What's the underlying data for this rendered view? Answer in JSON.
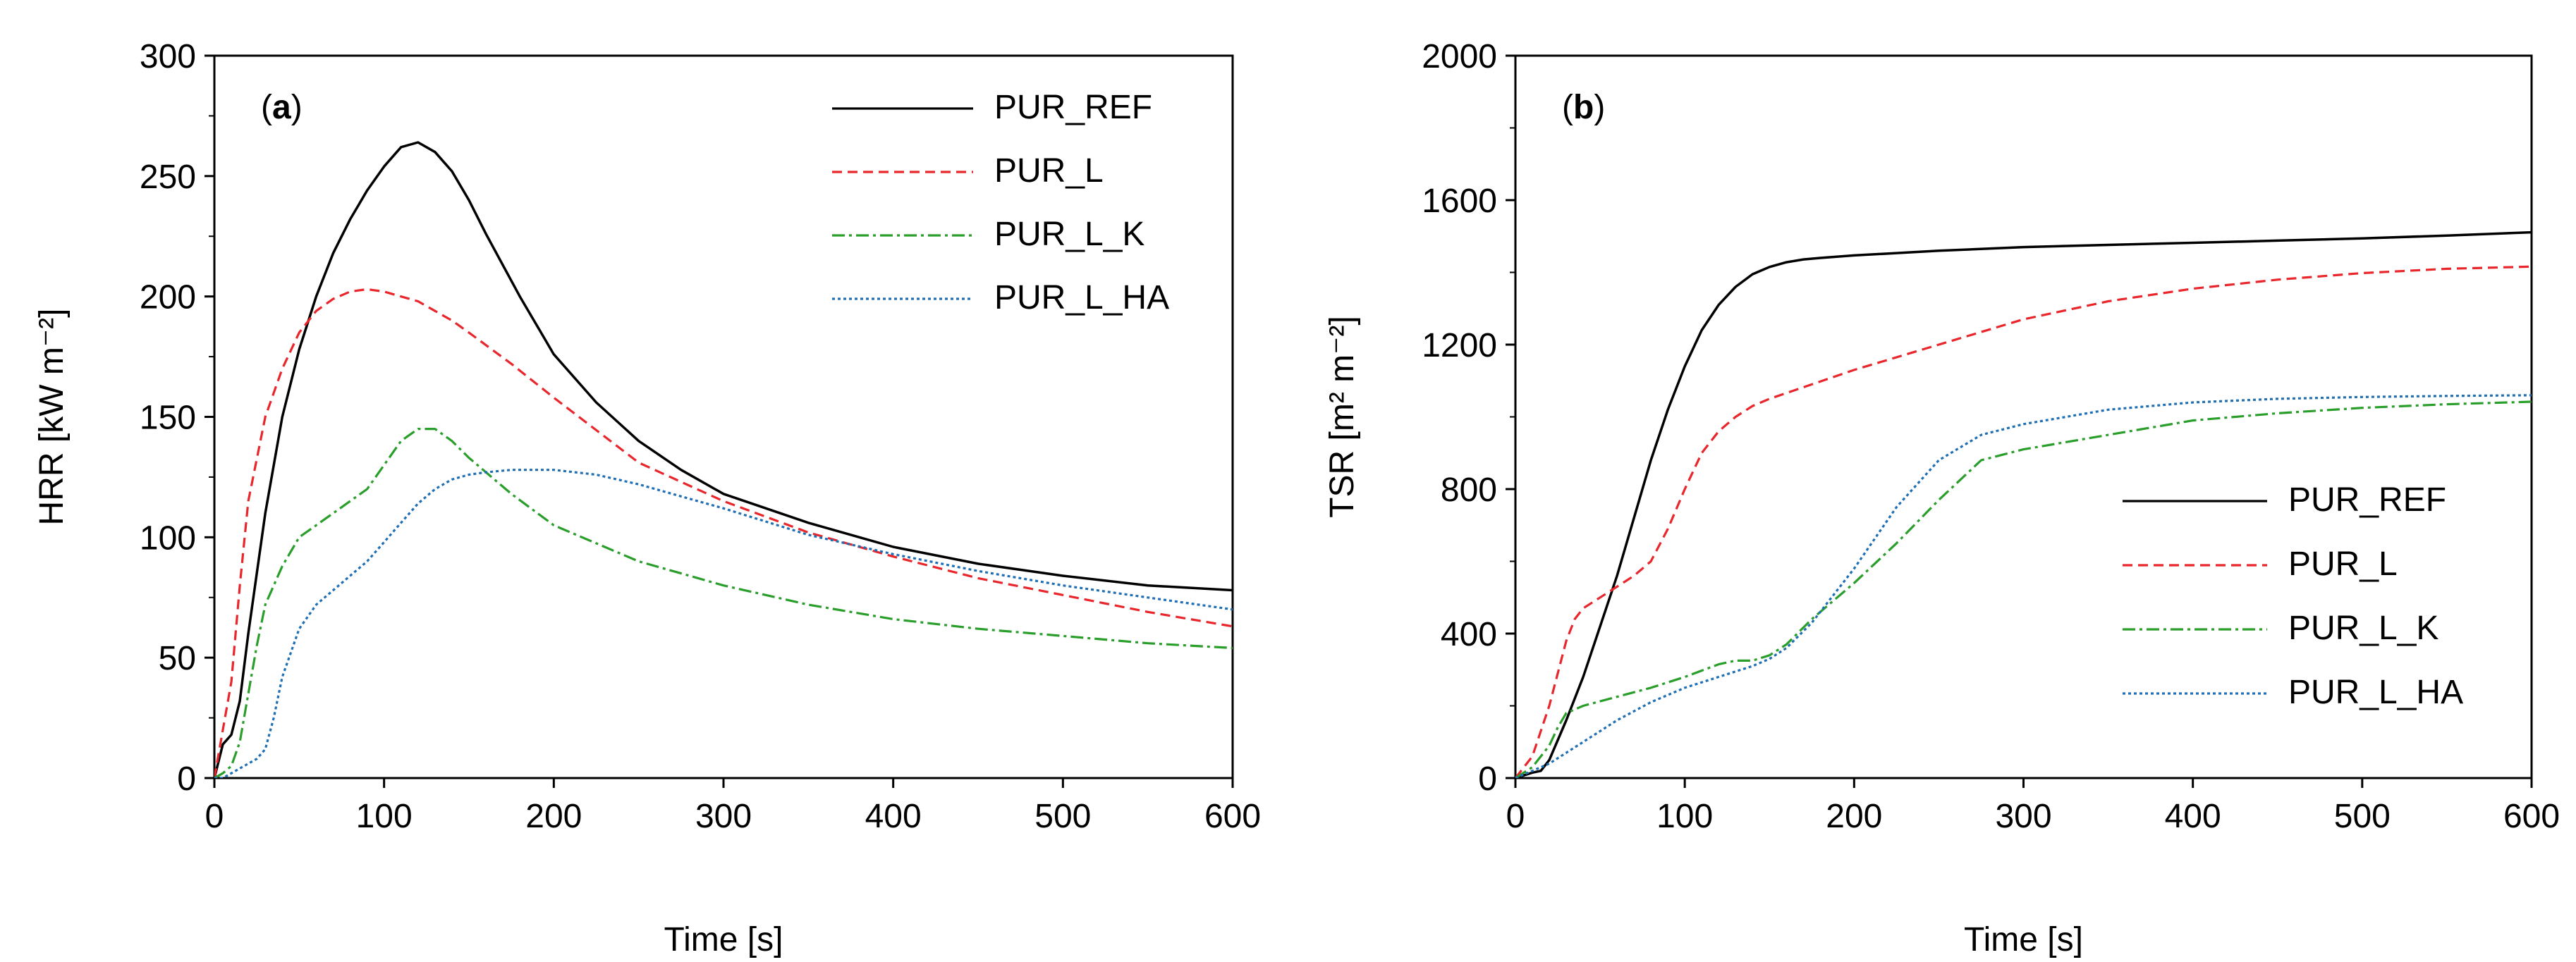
{
  "chart_data": [
    {
      "type": "line",
      "panel_label": "a",
      "xlabel": "Time [s]",
      "ylabel": "HRR [kW m⁻²]",
      "xlim": [
        0,
        600
      ],
      "ylim": [
        0,
        300
      ],
      "xticks": [
        0,
        100,
        200,
        300,
        400,
        500,
        600
      ],
      "yticks": [
        0,
        50,
        100,
        150,
        200,
        250,
        300
      ],
      "legend_position": "top-right",
      "grid": false,
      "series": [
        {
          "name": "PUR_REF",
          "color": "#000000",
          "dash": "solid",
          "x": [
            0,
            5,
            10,
            15,
            20,
            30,
            40,
            50,
            60,
            70,
            80,
            90,
            100,
            110,
            120,
            130,
            140,
            150,
            160,
            180,
            200,
            225,
            250,
            275,
            300,
            350,
            400,
            450,
            500,
            550,
            600
          ],
          "y": [
            0,
            14,
            18,
            32,
            60,
            110,
            150,
            178,
            200,
            218,
            232,
            244,
            254,
            262,
            264,
            260,
            252,
            240,
            226,
            200,
            176,
            156,
            140,
            128,
            118,
            106,
            96,
            89,
            84,
            80,
            78
          ]
        },
        {
          "name": "PUR_L",
          "color": "#e8262b",
          "dash": "dashed",
          "x": [
            0,
            5,
            10,
            15,
            20,
            30,
            40,
            50,
            60,
            70,
            80,
            90,
            100,
            110,
            120,
            130,
            140,
            150,
            175,
            200,
            250,
            300,
            350,
            400,
            450,
            500,
            550,
            600
          ],
          "y": [
            0,
            20,
            40,
            80,
            115,
            150,
            170,
            185,
            194,
            199,
            202,
            203,
            202,
            200,
            198,
            194,
            190,
            185,
            172,
            158,
            131,
            115,
            102,
            92,
            83,
            76,
            69,
            63
          ]
        },
        {
          "name": "PUR_L_K",
          "color": "#2a9e2a",
          "dash": "dashdot",
          "x": [
            0,
            5,
            10,
            15,
            20,
            25,
            30,
            40,
            50,
            60,
            70,
            80,
            90,
            100,
            110,
            120,
            130,
            140,
            150,
            175,
            200,
            250,
            300,
            350,
            400,
            450,
            500,
            550,
            600
          ],
          "y": [
            0,
            2,
            5,
            15,
            35,
            55,
            72,
            88,
            100,
            105,
            110,
            115,
            120,
            130,
            140,
            145,
            145,
            140,
            133,
            118,
            105,
            90,
            80,
            72,
            66,
            62,
            59,
            56,
            54
          ]
        },
        {
          "name": "PUR_L_HA",
          "color": "#1f6fb4",
          "dash": "dotted",
          "x": [
            0,
            5,
            10,
            15,
            20,
            25,
            30,
            35,
            40,
            50,
            60,
            70,
            80,
            90,
            100,
            110,
            120,
            130,
            140,
            150,
            160,
            175,
            190,
            200,
            225,
            250,
            275,
            300,
            350,
            400,
            450,
            500,
            550,
            600
          ],
          "y": [
            0,
            0,
            2,
            4,
            6,
            8,
            12,
            25,
            42,
            62,
            72,
            78,
            84,
            90,
            98,
            106,
            114,
            120,
            124,
            126,
            127,
            128,
            128,
            128,
            126,
            122,
            117,
            112,
            101,
            93,
            86,
            80,
            75,
            70
          ]
        }
      ]
    },
    {
      "type": "line",
      "panel_label": "b",
      "xlabel": "Time [s]",
      "ylabel": "TSR [m² m⁻²]",
      "xlim": [
        0,
        600
      ],
      "ylim": [
        0,
        2000
      ],
      "xticks": [
        0,
        100,
        200,
        300,
        400,
        500,
        600
      ],
      "yticks": [
        0,
        400,
        800,
        1200,
        1600,
        2000
      ],
      "legend_position": "bottom-right",
      "grid": false,
      "series": [
        {
          "name": "PUR_REF",
          "color": "#000000",
          "dash": "solid",
          "x": [
            0,
            10,
            15,
            20,
            30,
            40,
            50,
            60,
            70,
            80,
            90,
            100,
            110,
            120,
            130,
            140,
            150,
            160,
            170,
            180,
            200,
            250,
            300,
            350,
            400,
            450,
            500,
            550,
            600
          ],
          "y": [
            0,
            15,
            20,
            50,
            160,
            280,
            420,
            560,
            720,
            880,
            1020,
            1140,
            1240,
            1310,
            1360,
            1395,
            1415,
            1428,
            1436,
            1440,
            1447,
            1460,
            1470,
            1476,
            1482,
            1488,
            1494,
            1502,
            1511
          ]
        },
        {
          "name": "PUR_L",
          "color": "#e8262b",
          "dash": "dashed",
          "x": [
            0,
            10,
            20,
            30,
            35,
            40,
            50,
            60,
            70,
            80,
            90,
            100,
            110,
            120,
            130,
            140,
            150,
            175,
            200,
            250,
            300,
            350,
            400,
            450,
            500,
            550,
            600
          ],
          "y": [
            0,
            60,
            200,
            380,
            440,
            470,
            500,
            530,
            560,
            600,
            690,
            800,
            900,
            960,
            1000,
            1030,
            1050,
            1090,
            1130,
            1200,
            1270,
            1320,
            1355,
            1380,
            1398,
            1410,
            1416
          ]
        },
        {
          "name": "PUR_L_K",
          "color": "#2a9e2a",
          "dash": "dashdot",
          "x": [
            0,
            10,
            20,
            25,
            30,
            40,
            60,
            80,
            100,
            120,
            130,
            140,
            150,
            160,
            175,
            200,
            225,
            250,
            275,
            300,
            350,
            400,
            450,
            500,
            550,
            600
          ],
          "y": [
            0,
            30,
            90,
            140,
            180,
            200,
            225,
            250,
            280,
            315,
            325,
            325,
            340,
            370,
            440,
            540,
            650,
            770,
            880,
            910,
            950,
            990,
            1010,
            1025,
            1035,
            1042
          ]
        },
        {
          "name": "PUR_L_HA",
          "color": "#1f6fb4",
          "dash": "dotted",
          "x": [
            0,
            10,
            20,
            30,
            40,
            60,
            80,
            100,
            120,
            140,
            150,
            160,
            175,
            200,
            225,
            250,
            275,
            300,
            350,
            400,
            450,
            500,
            550,
            600
          ],
          "y": [
            0,
            20,
            40,
            70,
            100,
            160,
            210,
            250,
            280,
            310,
            330,
            360,
            430,
            580,
            750,
            880,
            950,
            980,
            1020,
            1040,
            1050,
            1055,
            1058,
            1060
          ]
        }
      ]
    }
  ]
}
